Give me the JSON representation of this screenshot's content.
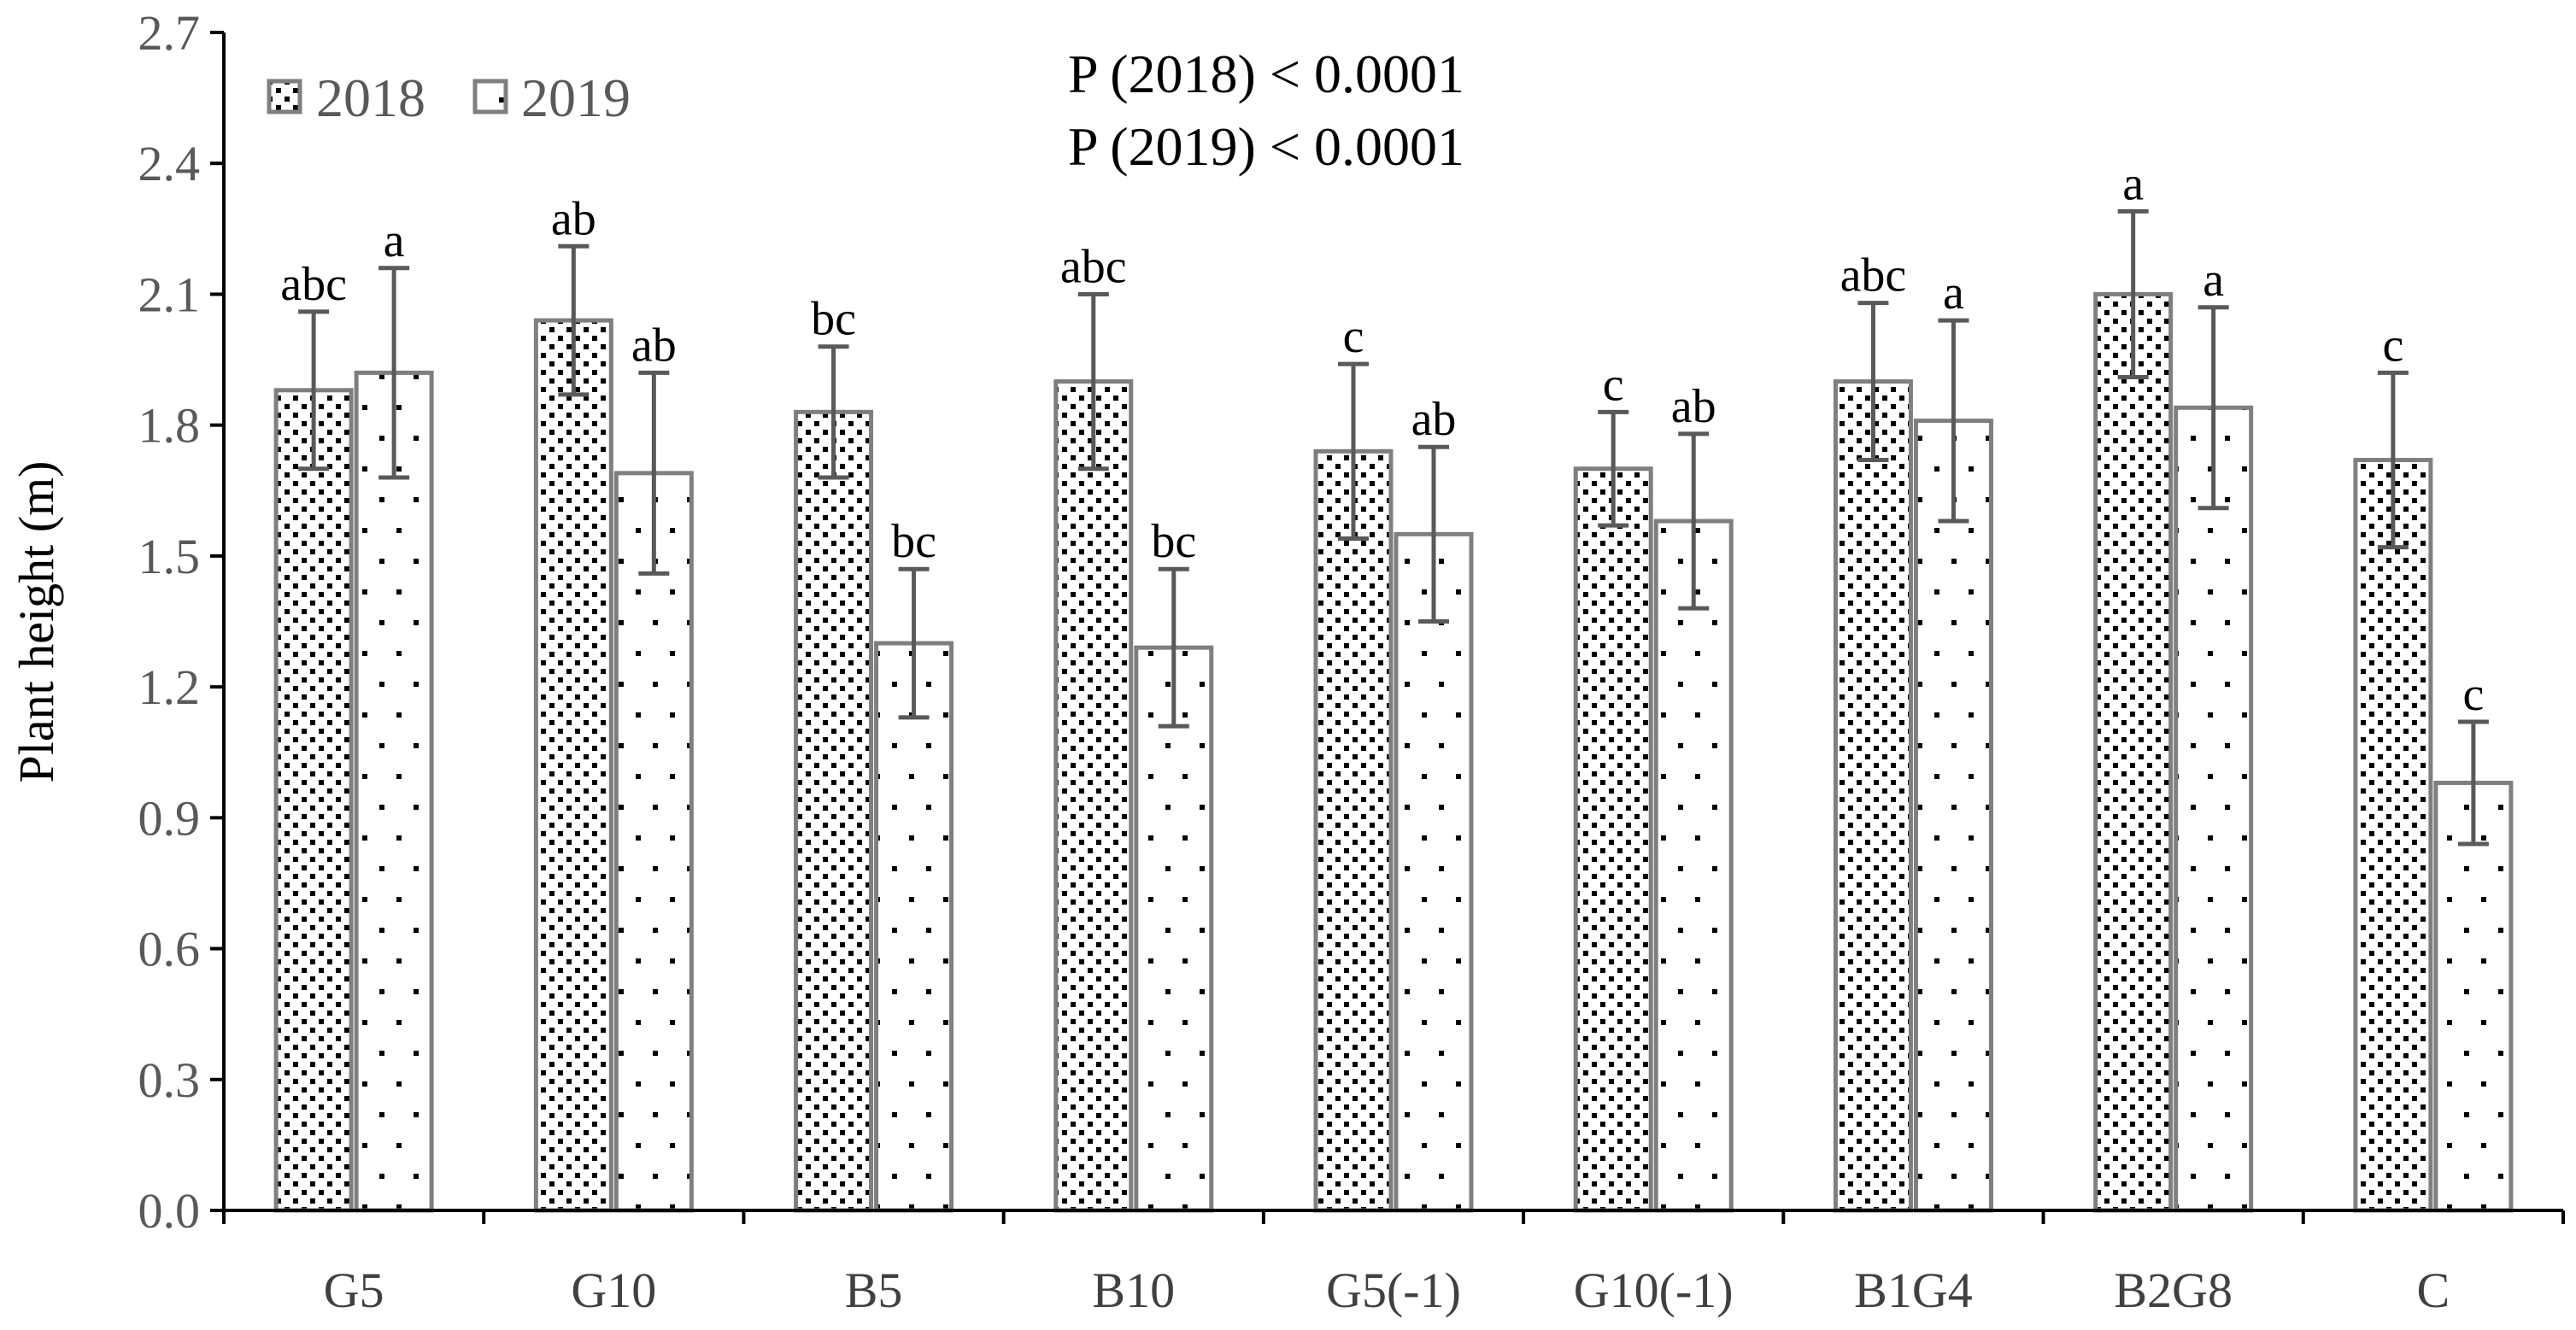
{
  "chart_data": {
    "type": "bar",
    "title": "",
    "xlabel": "",
    "ylabel": "Plant height (m)",
    "ylim": [
      0,
      2.7
    ],
    "yticks": [
      "0.0",
      "0.3",
      "0.6",
      "0.9",
      "1.2",
      "1.5",
      "1.8",
      "2.1",
      "2.4",
      "2.7"
    ],
    "categories": [
      "G5",
      "G10",
      "B5",
      "B10",
      "G5(-1)",
      "G10(-1)",
      "B1G4",
      "B2G8",
      "C"
    ],
    "series": [
      {
        "name": "2018",
        "pattern": "dense-dots",
        "values": [
          1.88,
          2.04,
          1.83,
          1.9,
          1.74,
          1.7,
          1.9,
          2.1,
          1.72
        ],
        "errors": [
          0.18,
          0.17,
          0.15,
          0.2,
          0.2,
          0.13,
          0.18,
          0.19,
          0.2
        ],
        "labels": [
          "abc",
          "ab",
          "bc",
          "abc",
          "c",
          "c",
          "abc",
          "a",
          "c"
        ]
      },
      {
        "name": "2019",
        "pattern": "sparse-dots",
        "values": [
          1.92,
          1.69,
          1.3,
          1.29,
          1.55,
          1.58,
          1.81,
          1.84,
          0.98
        ],
        "errors": [
          0.24,
          0.23,
          0.17,
          0.18,
          0.2,
          0.2,
          0.23,
          0.23,
          0.14
        ],
        "labels": [
          "a",
          "ab",
          "bc",
          "bc",
          "ab",
          "ab",
          "a",
          "a",
          "c"
        ]
      }
    ],
    "annotations": [
      "P (2018) < 0.0001",
      "P (2019) < 0.0001"
    ],
    "legend_position": "top-left",
    "grid": false,
    "colors": {
      "bar_edge": "#7f7f7f",
      "error_bar": "#595959",
      "axis": "#000000",
      "fill": "#ffffff",
      "dot": "#000000"
    }
  }
}
